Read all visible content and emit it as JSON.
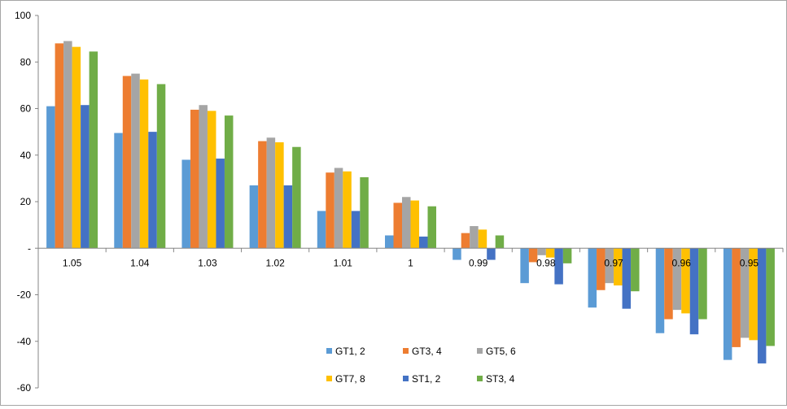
{
  "chart_data": {
    "type": "bar",
    "title": "",
    "xlabel": "",
    "ylabel": "",
    "ylim": [
      -60,
      100
    ],
    "yticks": [
      -60,
      -40,
      -20,
      0,
      20,
      40,
      60,
      80,
      100
    ],
    "ytick_labels": [
      "-60",
      "-40",
      "-20",
      "-",
      "20",
      "40",
      "60",
      "80",
      "100"
    ],
    "categories": [
      "1.05",
      "1.04",
      "1.03",
      "1.02",
      "1.01",
      "1",
      "0.99",
      "0.98",
      "0.97",
      "0.96",
      "0.95"
    ],
    "grid": false,
    "legend_position": "bottom-center",
    "series": [
      {
        "name": "GT1, 2",
        "color": "#5b9bd5",
        "values": [
          61,
          49.5,
          38,
          27,
          16,
          5.5,
          -5,
          -15,
          -25.5,
          -36.5,
          -48
        ]
      },
      {
        "name": "GT3, 4",
        "color": "#ed7d31",
        "values": [
          88,
          74,
          59.5,
          46,
          32.5,
          19.5,
          6.5,
          -6,
          -18,
          -30.5,
          -42.5
        ]
      },
      {
        "name": "GT5, 6",
        "color": "#a5a5a5",
        "values": [
          89,
          75,
          61.5,
          47.5,
          34.5,
          22,
          9.5,
          -3,
          -15,
          -26.5,
          -38.5
        ]
      },
      {
        "name": "GT7, 8",
        "color": "#ffc000",
        "values": [
          86.5,
          72.5,
          59,
          45.5,
          33,
          20.5,
          8,
          -4,
          -16,
          -28,
          -39.5
        ]
      },
      {
        "name": "ST1, 2",
        "color": "#4472c4",
        "values": [
          61.5,
          50,
          38.5,
          27,
          16,
          5,
          -5,
          -15.5,
          -26,
          -37,
          -49.5
        ]
      },
      {
        "name": "ST3, 4",
        "color": "#70ad47",
        "values": [
          84.5,
          70.5,
          57,
          43.5,
          30.5,
          18,
          5.5,
          -6.5,
          -18.5,
          -30.5,
          -42
        ]
      }
    ]
  }
}
